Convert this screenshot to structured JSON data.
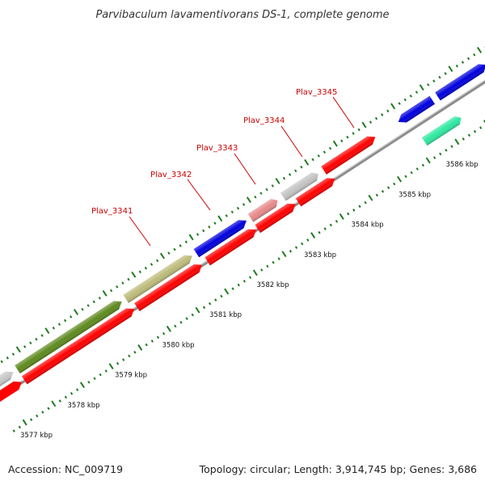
{
  "title": "Parvibaculum lavamentivorans DS-1, complete genome",
  "accession": "Accession: NC_009719",
  "topology": "Topology: circular; Length: 3,914,745 bp; Genes: 3,686",
  "colors": {
    "label": "#cc0000",
    "tick": "#1f7a1f",
    "backbone": "#8c8c8c"
  },
  "kbp_labels": [
    "3577 kbp",
    "3578 kbp",
    "3579 kbp",
    "3580 kbp",
    "3581 kbp",
    "3582 kbp",
    "3583 kbp",
    "3584 kbp",
    "3585 kbp",
    "3586 kbp"
  ],
  "gene_labels": [
    "Plav_3341",
    "Plav_3342",
    "Plav_3343",
    "Plav_3344",
    "Plav_3345"
  ]
}
